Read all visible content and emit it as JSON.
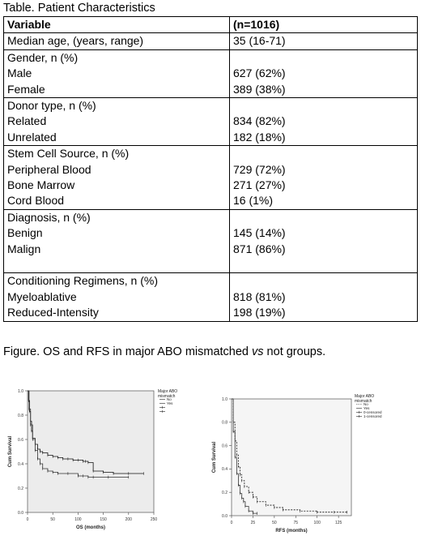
{
  "table": {
    "caption": "Table. Patient Characteristics",
    "headers": [
      "Variable",
      "(n=1016)"
    ],
    "rows": [
      [
        [
          "Median age, (years, range)"
        ],
        [
          "35 (16-71)"
        ]
      ],
      [
        [
          "Gender, n (%)",
          "Male",
          "Female"
        ],
        [
          "",
          "627 (62%)",
          "389 (38%)"
        ]
      ],
      [
        [
          "Donor type, n (%)",
          "Related",
          "Unrelated"
        ],
        [
          "",
          "834 (82%)",
          "182 (18%)"
        ]
      ],
      [
        [
          "Stem Cell Source, n (%)",
          "Peripheral Blood",
          "Bone Marrow",
          "Cord Blood"
        ],
        [
          "",
          "729 (72%)",
          "271 (27%)",
          "16 (1%)"
        ]
      ],
      [
        [
          "Diagnosis, n (%)",
          "Benign",
          "Malign",
          ""
        ],
        [
          "",
          "145 (14%)",
          "871 (86%)",
          ""
        ]
      ],
      [
        [
          "Conditioning Regimens, n (%)",
          "Myeloablative",
          "Reduced-Intensity"
        ],
        [
          "",
          "818 (81%)",
          "198 (19%)"
        ]
      ]
    ]
  },
  "figure_caption": {
    "pre": "Figure. OS and RFS in major ABO mismatched ",
    "em": "vs",
    "post": " not groups."
  },
  "chart_data": [
    {
      "type": "line",
      "xlabel": "OS (months)",
      "ylabel": "Cum Survival",
      "xticks": [
        0,
        50,
        100,
        150,
        200,
        250
      ],
      "yticks": [
        "0.0",
        "0.2",
        "0.4",
        "0.6",
        "0.8",
        "1.0"
      ],
      "xlim": [
        0,
        250
      ],
      "ylim": [
        0,
        1.0
      ],
      "legend_title": [
        "Major ABO",
        "mismatch"
      ],
      "legend_items": [
        "No",
        "Yes",
        "",
        ""
      ],
      "series": [
        {
          "name": "No",
          "dash": "",
          "x": [
            0,
            2,
            4,
            6,
            8,
            10,
            15,
            20,
            25,
            30,
            40,
            50,
            60,
            70,
            80,
            90,
            100,
            110,
            115,
            120,
            130,
            150,
            170,
            200,
            230
          ],
          "y": [
            1.0,
            0.92,
            0.83,
            0.75,
            0.67,
            0.61,
            0.56,
            0.52,
            0.5,
            0.49,
            0.47,
            0.46,
            0.45,
            0.44,
            0.44,
            0.43,
            0.43,
            0.42,
            0.42,
            0.41,
            0.34,
            0.33,
            0.32,
            0.32,
            0.32
          ]
        },
        {
          "name": "Yes",
          "dash": "",
          "x": [
            0,
            3,
            6,
            10,
            15,
            20,
            25,
            30,
            40,
            50,
            60,
            80,
            100,
            110,
            120,
            130,
            160,
            200
          ],
          "y": [
            1.0,
            0.85,
            0.72,
            0.6,
            0.51,
            0.44,
            0.4,
            0.36,
            0.34,
            0.33,
            0.32,
            0.32,
            0.3,
            0.3,
            0.29,
            0.29,
            0.29,
            0.29
          ]
        }
      ]
    },
    {
      "type": "line",
      "xlabel": "RFS (months)",
      "ylabel": "Cum Survival",
      "xticks": [
        0,
        25,
        50,
        75,
        100,
        125
      ],
      "yticks": [
        "0.0",
        "0.2",
        "0.4",
        "0.6",
        "0.8",
        "1.0"
      ],
      "xlim": [
        0,
        140
      ],
      "ylim": [
        0,
        1.0
      ],
      "legend_title": [
        "Major ABO",
        "mismatch"
      ],
      "legend_items": [
        "No",
        "Yes",
        "0-censored",
        "1-censored"
      ],
      "series": [
        {
          "name": "No",
          "dash": "2,1.5",
          "x": [
            0,
            2,
            4,
            6,
            8,
            10,
            12,
            15,
            20,
            25,
            30,
            40,
            50,
            60,
            80,
            100,
            120,
            135
          ],
          "y": [
            1.0,
            0.8,
            0.64,
            0.52,
            0.42,
            0.35,
            0.3,
            0.25,
            0.2,
            0.16,
            0.12,
            0.09,
            0.07,
            0.05,
            0.04,
            0.03,
            0.03,
            0.03
          ]
        },
        {
          "name": "Yes",
          "dash": "",
          "x": [
            0,
            2,
            4,
            6,
            8,
            10,
            12,
            14,
            16,
            20,
            25,
            30
          ],
          "y": [
            1.0,
            0.72,
            0.5,
            0.36,
            0.26,
            0.19,
            0.15,
            0.12,
            0.08,
            0.04,
            0.02,
            0.02
          ]
        }
      ]
    }
  ]
}
